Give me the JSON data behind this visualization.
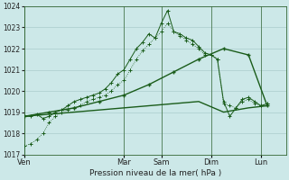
{
  "xlabel": "Pression niveau de la mer( hPa )",
  "background_color": "#cce8e8",
  "grid_color": "#aacccc",
  "line_color": "#1a5c1a",
  "ylim": [
    1017,
    1024
  ],
  "yticks": [
    1017,
    1018,
    1019,
    1020,
    1021,
    1022,
    1023,
    1024
  ],
  "day_labels": [
    "Ven",
    "Mar",
    "Sam",
    "Dim",
    "Lun"
  ],
  "day_positions": [
    0,
    16,
    22,
    30,
    38
  ],
  "xlim": [
    0,
    42
  ],
  "line1_x": [
    0,
    1,
    2,
    3,
    4,
    5,
    6,
    7,
    8,
    9,
    10,
    11,
    12,
    13,
    14,
    15,
    16,
    17,
    18,
    19,
    20,
    21,
    22,
    23,
    24,
    25,
    26,
    27,
    28,
    29,
    30,
    31,
    32,
    33,
    34,
    35,
    36,
    37,
    38,
    39
  ],
  "line1_y": [
    1017.4,
    1017.5,
    1017.7,
    1018.0,
    1018.5,
    1018.8,
    1019.0,
    1019.1,
    1019.2,
    1019.3,
    1019.5,
    1019.6,
    1019.7,
    1019.8,
    1020.0,
    1020.3,
    1020.5,
    1021.0,
    1021.5,
    1021.9,
    1022.2,
    1022.5,
    1022.8,
    1023.2,
    1022.8,
    1022.6,
    1022.4,
    1022.2,
    1022.0,
    1021.7,
    1021.7,
    1021.5,
    1019.4,
    1019.3,
    1019.2,
    1019.5,
    1019.6,
    1019.4,
    1019.3,
    1019.4
  ],
  "line2_x": [
    0,
    1,
    2,
    3,
    4,
    5,
    6,
    7,
    8,
    9,
    10,
    11,
    12,
    13,
    14,
    15,
    16,
    17,
    18,
    19,
    20,
    21,
    22,
    23,
    24,
    25,
    26,
    27,
    28,
    29,
    30,
    31,
    32,
    33,
    34,
    35,
    36,
    37,
    38,
    39
  ],
  "line2_y": [
    1018.8,
    1018.8,
    1018.9,
    1018.7,
    1018.8,
    1019.0,
    1019.1,
    1019.3,
    1019.5,
    1019.6,
    1019.7,
    1019.8,
    1019.9,
    1020.1,
    1020.4,
    1020.8,
    1021.0,
    1021.5,
    1022.0,
    1022.3,
    1022.7,
    1022.5,
    1023.2,
    1023.8,
    1022.8,
    1022.7,
    1022.5,
    1022.4,
    1022.1,
    1021.8,
    1021.7,
    1021.5,
    1019.5,
    1018.8,
    1019.2,
    1019.6,
    1019.7,
    1019.5,
    1019.3,
    1019.4
  ],
  "line3_x": [
    0,
    4,
    8,
    12,
    16,
    20,
    24,
    28,
    32,
    36,
    39
  ],
  "line3_y": [
    1018.8,
    1019.0,
    1019.2,
    1019.5,
    1019.8,
    1020.3,
    1020.9,
    1021.5,
    1022.0,
    1021.7,
    1019.3
  ],
  "line4_x": [
    0,
    4,
    8,
    12,
    16,
    20,
    24,
    28,
    32,
    36,
    39
  ],
  "line4_y": [
    1018.8,
    1018.9,
    1019.0,
    1019.1,
    1019.2,
    1019.3,
    1019.4,
    1019.5,
    1019.0,
    1019.2,
    1019.3
  ]
}
